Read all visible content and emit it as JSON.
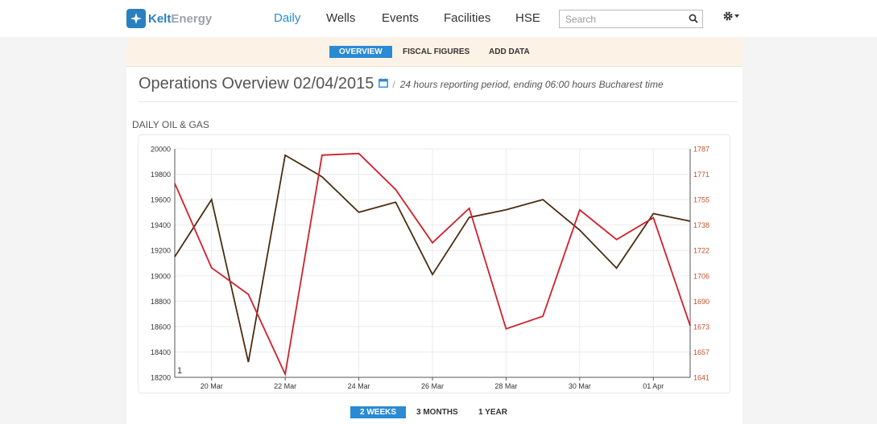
{
  "brand": {
    "name_part1": "Kelt",
    "name_part2": "Energy"
  },
  "nav": {
    "items": [
      {
        "label": "Daily",
        "active": true
      },
      {
        "label": "Wells",
        "active": false
      },
      {
        "label": "Events",
        "active": false
      },
      {
        "label": "Facilities",
        "active": false
      },
      {
        "label": "HSE",
        "active": false
      }
    ]
  },
  "search": {
    "placeholder": "Search",
    "value": ""
  },
  "subnav": {
    "tabs": [
      "OVERVIEW",
      "FISCAL FIGURES",
      "ADD DATA"
    ],
    "active": "OVERVIEW"
  },
  "header": {
    "title": "Operations Overview 02/04/2015",
    "separator": "/",
    "subtitle": "24 hours reporting period, ending 06:00 hours Bucharest time"
  },
  "section_title": "DAILY OIL & GAS",
  "range_buttons": {
    "items": [
      "2 WEEKS",
      "3 MONTHS",
      "1 YEAR"
    ],
    "active": "2 WEEKS"
  },
  "colors": {
    "accent": "#2a8ad4",
    "series_dark": "#4a2d10",
    "series_red": "#d0202a",
    "right_axis_text": "#c8502a"
  },
  "chart_data": {
    "type": "line",
    "x": [
      "19 Mar",
      "20 Mar",
      "21 Mar",
      "22 Mar",
      "23 Mar",
      "24 Mar",
      "25 Mar",
      "26 Mar",
      "27 Mar",
      "28 Mar",
      "29 Mar",
      "30 Mar",
      "31 Mar",
      "01 Apr",
      "02 Apr"
    ],
    "x_tick_labels": [
      "20 Mar",
      "22 Mar",
      "24 Mar",
      "26 Mar",
      "28 Mar",
      "30 Mar",
      "01 Apr"
    ],
    "y_left": {
      "ylim": [
        18200,
        20000
      ],
      "ticks": [
        "20000",
        "19800",
        "19600",
        "19400",
        "19200",
        "19000",
        "18800",
        "18600",
        "18400",
        "18200"
      ]
    },
    "y_right": {
      "ylim": [
        1641,
        1787
      ],
      "ticks": [
        "1787",
        "1771",
        "1755",
        "1738",
        "1722",
        "1706",
        "1690",
        "1673",
        "1657",
        "1641"
      ]
    },
    "series": [
      {
        "axis": "left",
        "color": "#4a2d10",
        "values": [
          19150,
          19600,
          18320,
          19950,
          19780,
          19500,
          19580,
          19010,
          19460,
          19520,
          19600,
          19360,
          19060,
          19490,
          19430
        ]
      },
      {
        "axis": "right",
        "color": "#d0202a",
        "values": [
          1765,
          1711,
          1694,
          1643,
          1783,
          1784,
          1761,
          1727,
          1749,
          1672,
          1680,
          1748,
          1729,
          1743,
          1674
        ]
      }
    ],
    "grid": true,
    "left_axis_cursor_label": "1"
  }
}
